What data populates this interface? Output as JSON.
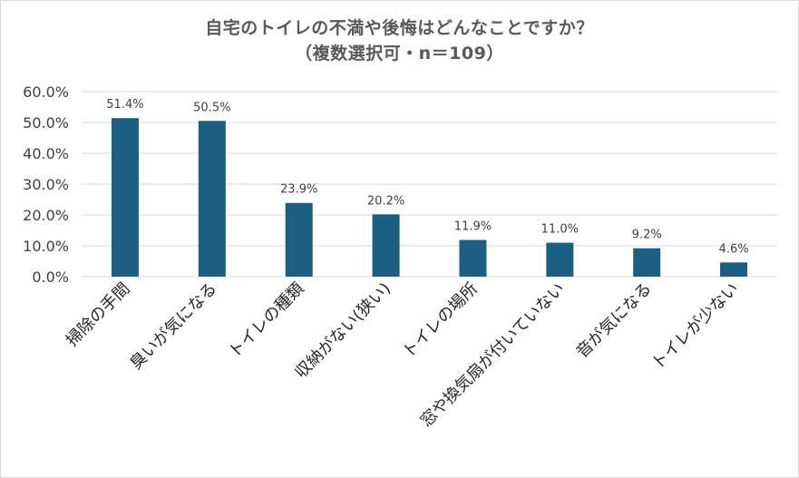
{
  "chart_data": {
    "type": "bar",
    "title_line1": "自宅のトイレの不満や後悔はどんなことですか？",
    "title_line2": "（複数選択可・n＝109）",
    "categories": [
      "掃除の手間",
      "臭いが気になる",
      "トイレの種類",
      "収納がない(狭い)",
      "トイレの場所",
      "窓や換気扇が付いていない",
      "音が気になる",
      "トイレが少ない"
    ],
    "values": [
      51.4,
      50.5,
      23.9,
      20.2,
      11.9,
      11.0,
      9.2,
      4.6
    ],
    "data_labels": [
      "51.4%",
      "50.5%",
      "23.9%",
      "20.2%",
      "11.9%",
      "11.0%",
      "9.2%",
      "4.6%"
    ],
    "y_ticks": [
      "0.0%",
      "10.0%",
      "20.0%",
      "30.0%",
      "40.0%",
      "50.0%",
      "60.0%"
    ],
    "ylim": [
      0,
      60
    ],
    "xlabel": "",
    "ylabel": "",
    "grid": true,
    "legend": "none",
    "bar_color": "#1b5f82",
    "grid_color": "#d9d9d9"
  }
}
